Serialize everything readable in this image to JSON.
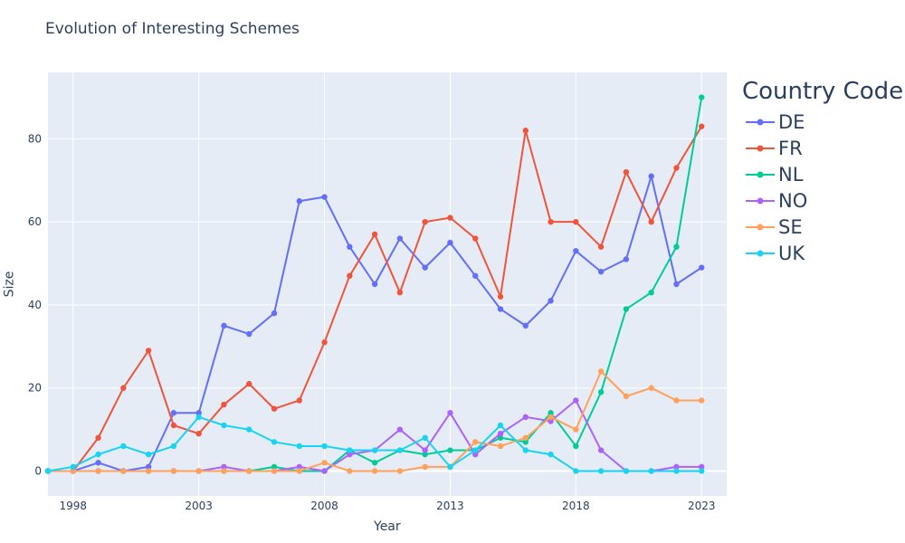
{
  "chart_data": {
    "type": "line",
    "title": "Evolution of Interesting Schemes",
    "xlabel": "Year",
    "ylabel": "Size",
    "xlim": [
      1997,
      2024
    ],
    "ylim": [
      -6,
      96
    ],
    "x_ticks": [
      1998,
      2003,
      2008,
      2013,
      2018,
      2023
    ],
    "y_ticks": [
      0,
      20,
      40,
      60,
      80
    ],
    "legend_title": "Country Code",
    "legend_position": "right",
    "grid": true,
    "plot_bg": "#e5ecf6",
    "x": [
      1997,
      1998,
      1999,
      2000,
      2001,
      2002,
      2003,
      2004,
      2005,
      2006,
      2007,
      2008,
      2009,
      2010,
      2011,
      2012,
      2013,
      2014,
      2015,
      2016,
      2017,
      2018,
      2019,
      2020,
      2021,
      2022,
      2023
    ],
    "series": [
      {
        "name": "DE",
        "color": "#636efa",
        "values": [
          0,
          0,
          2,
          0,
          1,
          14,
          14,
          35,
          33,
          38,
          65,
          66,
          54,
          45,
          56,
          49,
          55,
          47,
          39,
          35,
          41,
          53,
          48,
          51,
          71,
          45,
          49
        ]
      },
      {
        "name": "FR",
        "color": "#ef553b",
        "values": [
          0,
          0,
          8,
          20,
          29,
          11,
          9,
          16,
          21,
          15,
          17,
          31,
          47,
          57,
          43,
          60,
          61,
          56,
          42,
          82,
          60,
          60,
          54,
          72,
          60,
          73,
          83
        ]
      },
      {
        "name": "NL",
        "color": "#00cc96",
        "values": [
          0,
          0,
          0,
          0,
          0,
          0,
          0,
          0,
          0,
          1,
          0,
          0,
          5,
          2,
          5,
          4,
          5,
          5,
          8,
          7,
          14,
          6,
          19,
          39,
          43,
          54,
          90
        ]
      },
      {
        "name": "NO",
        "color": "#ab63fa",
        "values": [
          0,
          0,
          0,
          0,
          0,
          0,
          0,
          1,
          0,
          0,
          1,
          0,
          4,
          5,
          10,
          5,
          14,
          4,
          9,
          13,
          12,
          17,
          5,
          0,
          0,
          1,
          1
        ]
      },
      {
        "name": "SE",
        "color": "#ffa15a",
        "values": [
          0,
          0,
          0,
          0,
          0,
          0,
          0,
          0,
          0,
          0,
          0,
          2,
          0,
          0,
          0,
          1,
          1,
          7,
          6,
          8,
          13,
          10,
          24,
          18,
          20,
          17,
          17
        ]
      },
      {
        "name": "UK",
        "color": "#19d3f3",
        "values": [
          0,
          1,
          4,
          6,
          4,
          6,
          13,
          11,
          10,
          7,
          6,
          6,
          5,
          5,
          5,
          8,
          1,
          5,
          11,
          5,
          4,
          0,
          0,
          0,
          0,
          0,
          0
        ]
      }
    ]
  }
}
